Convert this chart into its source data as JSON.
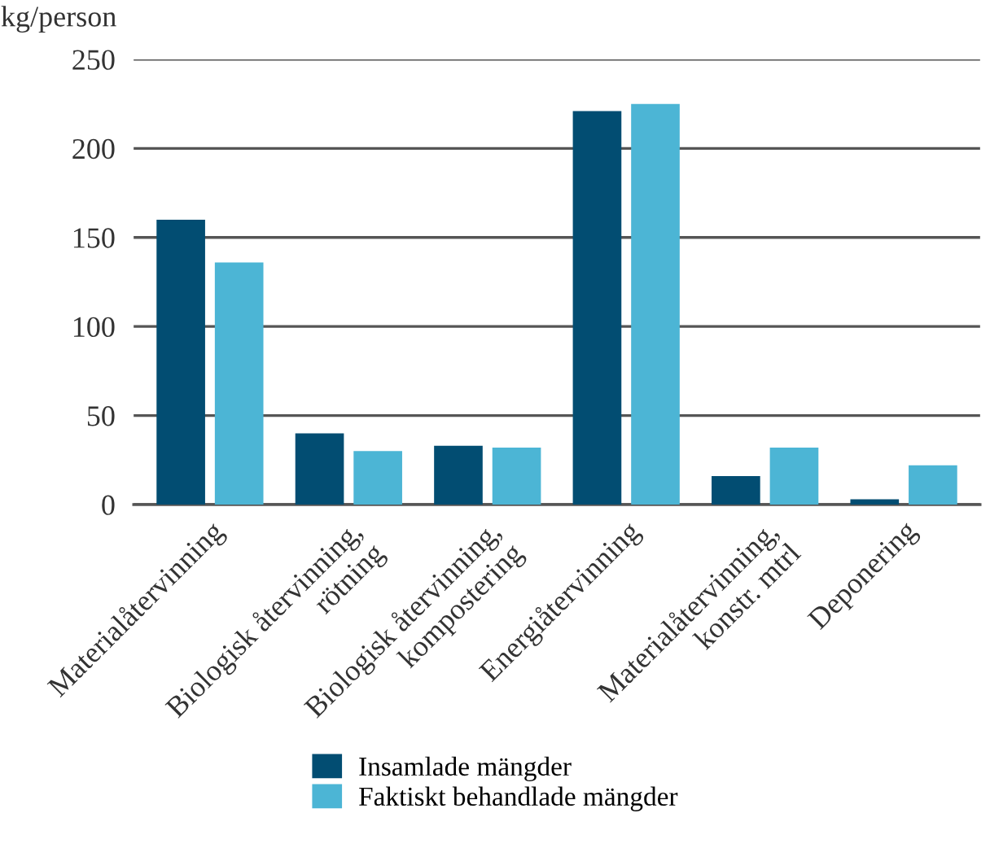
{
  "chart_data": {
    "type": "bar",
    "ylabel": "kg/person",
    "categories": [
      "Materialåtervinning",
      "Biologisk återvinning,\nrötning",
      "Biologisk återvinning,\nkompostering",
      "Energiåtervinning",
      "Materialåtervinning,\nkonstr. mtrl",
      "Deponering"
    ],
    "series": [
      {
        "name": "Insamlade mängder",
        "color": "#024d72",
        "values": [
          160,
          40,
          33,
          221,
          16,
          3
        ]
      },
      {
        "name": "Faktiskt behandlade mängder",
        "color": "#4cb5d5",
        "values": [
          136,
          30,
          32,
          225,
          32,
          22
        ]
      }
    ],
    "ylim": [
      0,
      250
    ],
    "yticks": [
      0,
      50,
      100,
      150,
      200,
      250
    ],
    "grid": "y",
    "legend": "bottom"
  }
}
